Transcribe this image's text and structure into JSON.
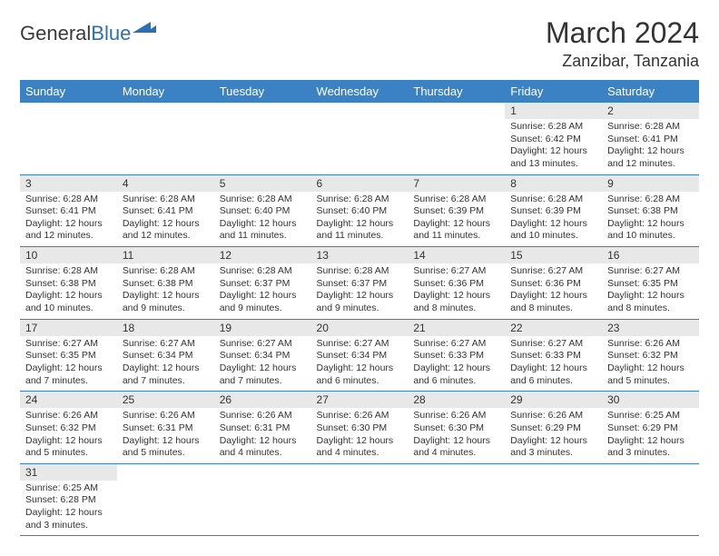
{
  "logo": {
    "text1": "General",
    "text2": "Blue"
  },
  "title": "March 2024",
  "location": "Zanzibar, Tanzania",
  "colors": {
    "header_bg": "#3a82c4",
    "header_text": "#ffffff",
    "daynum_bg": "#e8e8e8",
    "border": "#3a82c4",
    "logo_gray": "#3a3a3a",
    "logo_blue": "#2b6fb5"
  },
  "weekdays": [
    "Sunday",
    "Monday",
    "Tuesday",
    "Wednesday",
    "Thursday",
    "Friday",
    "Saturday"
  ],
  "weeks": [
    [
      {
        "n": "",
        "sr": "",
        "ss": "",
        "dl": ""
      },
      {
        "n": "",
        "sr": "",
        "ss": "",
        "dl": ""
      },
      {
        "n": "",
        "sr": "",
        "ss": "",
        "dl": ""
      },
      {
        "n": "",
        "sr": "",
        "ss": "",
        "dl": ""
      },
      {
        "n": "",
        "sr": "",
        "ss": "",
        "dl": ""
      },
      {
        "n": "1",
        "sr": "Sunrise: 6:28 AM",
        "ss": "Sunset: 6:42 PM",
        "dl": "Daylight: 12 hours and 13 minutes."
      },
      {
        "n": "2",
        "sr": "Sunrise: 6:28 AM",
        "ss": "Sunset: 6:41 PM",
        "dl": "Daylight: 12 hours and 12 minutes."
      }
    ],
    [
      {
        "n": "3",
        "sr": "Sunrise: 6:28 AM",
        "ss": "Sunset: 6:41 PM",
        "dl": "Daylight: 12 hours and 12 minutes."
      },
      {
        "n": "4",
        "sr": "Sunrise: 6:28 AM",
        "ss": "Sunset: 6:41 PM",
        "dl": "Daylight: 12 hours and 12 minutes."
      },
      {
        "n": "5",
        "sr": "Sunrise: 6:28 AM",
        "ss": "Sunset: 6:40 PM",
        "dl": "Daylight: 12 hours and 11 minutes."
      },
      {
        "n": "6",
        "sr": "Sunrise: 6:28 AM",
        "ss": "Sunset: 6:40 PM",
        "dl": "Daylight: 12 hours and 11 minutes."
      },
      {
        "n": "7",
        "sr": "Sunrise: 6:28 AM",
        "ss": "Sunset: 6:39 PM",
        "dl": "Daylight: 12 hours and 11 minutes."
      },
      {
        "n": "8",
        "sr": "Sunrise: 6:28 AM",
        "ss": "Sunset: 6:39 PM",
        "dl": "Daylight: 12 hours and 10 minutes."
      },
      {
        "n": "9",
        "sr": "Sunrise: 6:28 AM",
        "ss": "Sunset: 6:38 PM",
        "dl": "Daylight: 12 hours and 10 minutes."
      }
    ],
    [
      {
        "n": "10",
        "sr": "Sunrise: 6:28 AM",
        "ss": "Sunset: 6:38 PM",
        "dl": "Daylight: 12 hours and 10 minutes."
      },
      {
        "n": "11",
        "sr": "Sunrise: 6:28 AM",
        "ss": "Sunset: 6:38 PM",
        "dl": "Daylight: 12 hours and 9 minutes."
      },
      {
        "n": "12",
        "sr": "Sunrise: 6:28 AM",
        "ss": "Sunset: 6:37 PM",
        "dl": "Daylight: 12 hours and 9 minutes."
      },
      {
        "n": "13",
        "sr": "Sunrise: 6:28 AM",
        "ss": "Sunset: 6:37 PM",
        "dl": "Daylight: 12 hours and 9 minutes."
      },
      {
        "n": "14",
        "sr": "Sunrise: 6:27 AM",
        "ss": "Sunset: 6:36 PM",
        "dl": "Daylight: 12 hours and 8 minutes."
      },
      {
        "n": "15",
        "sr": "Sunrise: 6:27 AM",
        "ss": "Sunset: 6:36 PM",
        "dl": "Daylight: 12 hours and 8 minutes."
      },
      {
        "n": "16",
        "sr": "Sunrise: 6:27 AM",
        "ss": "Sunset: 6:35 PM",
        "dl": "Daylight: 12 hours and 8 minutes."
      }
    ],
    [
      {
        "n": "17",
        "sr": "Sunrise: 6:27 AM",
        "ss": "Sunset: 6:35 PM",
        "dl": "Daylight: 12 hours and 7 minutes."
      },
      {
        "n": "18",
        "sr": "Sunrise: 6:27 AM",
        "ss": "Sunset: 6:34 PM",
        "dl": "Daylight: 12 hours and 7 minutes."
      },
      {
        "n": "19",
        "sr": "Sunrise: 6:27 AM",
        "ss": "Sunset: 6:34 PM",
        "dl": "Daylight: 12 hours and 7 minutes."
      },
      {
        "n": "20",
        "sr": "Sunrise: 6:27 AM",
        "ss": "Sunset: 6:34 PM",
        "dl": "Daylight: 12 hours and 6 minutes."
      },
      {
        "n": "21",
        "sr": "Sunrise: 6:27 AM",
        "ss": "Sunset: 6:33 PM",
        "dl": "Daylight: 12 hours and 6 minutes."
      },
      {
        "n": "22",
        "sr": "Sunrise: 6:27 AM",
        "ss": "Sunset: 6:33 PM",
        "dl": "Daylight: 12 hours and 6 minutes."
      },
      {
        "n": "23",
        "sr": "Sunrise: 6:26 AM",
        "ss": "Sunset: 6:32 PM",
        "dl": "Daylight: 12 hours and 5 minutes."
      }
    ],
    [
      {
        "n": "24",
        "sr": "Sunrise: 6:26 AM",
        "ss": "Sunset: 6:32 PM",
        "dl": "Daylight: 12 hours and 5 minutes."
      },
      {
        "n": "25",
        "sr": "Sunrise: 6:26 AM",
        "ss": "Sunset: 6:31 PM",
        "dl": "Daylight: 12 hours and 5 minutes."
      },
      {
        "n": "26",
        "sr": "Sunrise: 6:26 AM",
        "ss": "Sunset: 6:31 PM",
        "dl": "Daylight: 12 hours and 4 minutes."
      },
      {
        "n": "27",
        "sr": "Sunrise: 6:26 AM",
        "ss": "Sunset: 6:30 PM",
        "dl": "Daylight: 12 hours and 4 minutes."
      },
      {
        "n": "28",
        "sr": "Sunrise: 6:26 AM",
        "ss": "Sunset: 6:30 PM",
        "dl": "Daylight: 12 hours and 4 minutes."
      },
      {
        "n": "29",
        "sr": "Sunrise: 6:26 AM",
        "ss": "Sunset: 6:29 PM",
        "dl": "Daylight: 12 hours and 3 minutes."
      },
      {
        "n": "30",
        "sr": "Sunrise: 6:25 AM",
        "ss": "Sunset: 6:29 PM",
        "dl": "Daylight: 12 hours and 3 minutes."
      }
    ],
    [
      {
        "n": "31",
        "sr": "Sunrise: 6:25 AM",
        "ss": "Sunset: 6:28 PM",
        "dl": "Daylight: 12 hours and 3 minutes."
      },
      {
        "n": "",
        "sr": "",
        "ss": "",
        "dl": ""
      },
      {
        "n": "",
        "sr": "",
        "ss": "",
        "dl": ""
      },
      {
        "n": "",
        "sr": "",
        "ss": "",
        "dl": ""
      },
      {
        "n": "",
        "sr": "",
        "ss": "",
        "dl": ""
      },
      {
        "n": "",
        "sr": "",
        "ss": "",
        "dl": ""
      },
      {
        "n": "",
        "sr": "",
        "ss": "",
        "dl": ""
      }
    ]
  ]
}
